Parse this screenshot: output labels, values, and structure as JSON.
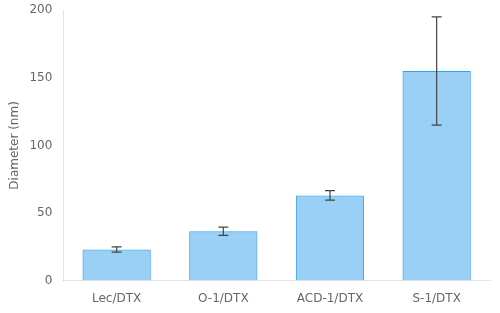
{
  "chart_data": {
    "type": "bar",
    "categories": [
      "Lec/DTX",
      "O-1/DTX",
      "ACD-1/DTX",
      "S-1/DTX"
    ],
    "values": [
      23.0,
      36.5,
      63.0,
      155.0
    ],
    "errors": [
      2.0,
      3.0,
      3.5,
      40.0
    ],
    "ylabel": "Diameter (nm)",
    "ylim": [
      0,
      200
    ],
    "yticks": [
      0,
      50,
      100,
      150,
      200
    ],
    "grid": false
  }
}
